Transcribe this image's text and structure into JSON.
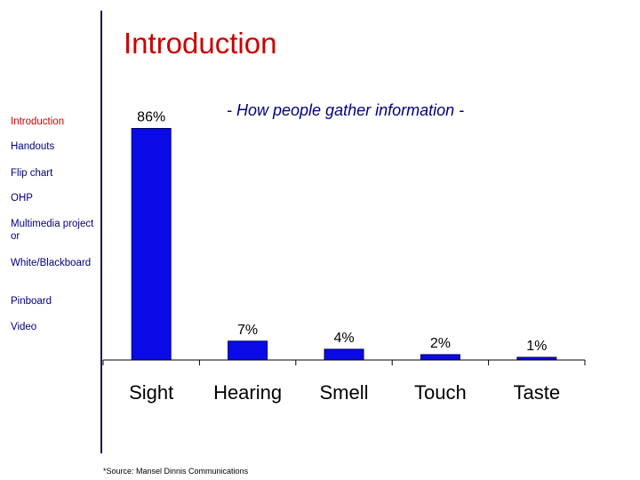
{
  "page": {
    "title": "Introduction",
    "subtitle": "- How people gather information -",
    "footnote": "*Source: Mansel Dinnis Communications"
  },
  "nav": {
    "items": [
      {
        "label": "Introduction",
        "active": true
      },
      {
        "label": "Handouts",
        "active": false
      },
      {
        "label": "Flip chart",
        "active": false
      },
      {
        "label": "OHP",
        "active": false
      },
      {
        "label": "Multimedia projector",
        "active": false
      },
      {
        "label": "White/Blackboard",
        "active": false
      },
      {
        "label": "Pinboard",
        "active": false
      },
      {
        "label": "Video",
        "active": false
      }
    ]
  },
  "colors": {
    "accent": "#cc0000",
    "text": "#000080",
    "bar": "#0a0ae6",
    "bar_edge": "#000066"
  },
  "chart_data": {
    "type": "bar",
    "categories": [
      "Sight",
      "Hearing",
      "Smell",
      "Touch",
      "Taste"
    ],
    "values": [
      86,
      7,
      4,
      2,
      1
    ],
    "value_labels": [
      "86%",
      "7%",
      "4%",
      "2%",
      "1%"
    ],
    "title": "- How people gather information -",
    "xlabel": "",
    "ylabel": "",
    "ylim": [
      0,
      100
    ],
    "grid": false,
    "legend": "none"
  }
}
